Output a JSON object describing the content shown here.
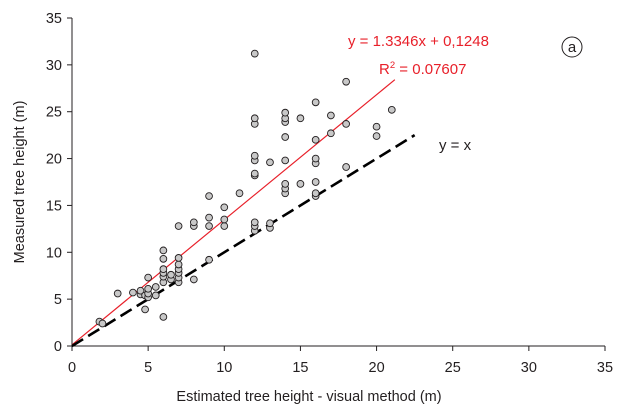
{
  "chart_data": {
    "type": "scatter",
    "xlabel": "Estimated tree height - visual method (m)",
    "ylabel": "Measured tree height (m)",
    "xlim": [
      0,
      35
    ],
    "ylim": [
      0,
      35
    ],
    "xticks": [
      0,
      5,
      10,
      15,
      20,
      25,
      30,
      35
    ],
    "yticks": [
      0,
      5,
      10,
      15,
      20,
      25,
      30,
      35
    ],
    "grid": false,
    "panel_label": "a",
    "series": [
      {
        "kind": "scatter",
        "marker": "circle",
        "fill": "#c8c8c8",
        "edge": "#231f20",
        "points": [
          [
            1.8,
            2.6
          ],
          [
            2.0,
            2.4
          ],
          [
            3.0,
            5.6
          ],
          [
            4.0,
            5.7
          ],
          [
            4.5,
            5.5
          ],
          [
            4.5,
            5.9
          ],
          [
            4.8,
            5.4
          ],
          [
            5.0,
            5.2
          ],
          [
            5.0,
            5.6
          ],
          [
            5.0,
            6.1
          ],
          [
            5.0,
            7.3
          ],
          [
            4.8,
            3.9
          ],
          [
            5.5,
            5.4
          ],
          [
            5.5,
            6.3
          ],
          [
            6.0,
            3.1
          ],
          [
            6.0,
            6.8
          ],
          [
            6.0,
            7.4
          ],
          [
            6.0,
            7.8
          ],
          [
            6.0,
            8.2
          ],
          [
            6.0,
            9.3
          ],
          [
            6.0,
            10.2
          ],
          [
            6.5,
            7.1
          ],
          [
            6.5,
            7.6
          ],
          [
            7.0,
            6.8
          ],
          [
            7.0,
            7.3
          ],
          [
            7.0,
            7.8
          ],
          [
            7.0,
            8.2
          ],
          [
            7.0,
            8.7
          ],
          [
            7.0,
            9.4
          ],
          [
            7.0,
            12.8
          ],
          [
            8.0,
            7.1
          ],
          [
            8.0,
            12.8
          ],
          [
            8.0,
            13.2
          ],
          [
            9.0,
            9.2
          ],
          [
            9.0,
            12.8
          ],
          [
            9.0,
            13.7
          ],
          [
            9.0,
            16.0
          ],
          [
            10.0,
            12.8
          ],
          [
            10.0,
            13.5
          ],
          [
            10.0,
            14.8
          ],
          [
            11.0,
            16.3
          ],
          [
            12.0,
            12.3
          ],
          [
            12.0,
            12.8
          ],
          [
            12.0,
            13.2
          ],
          [
            12.0,
            18.2
          ],
          [
            12.0,
            18.4
          ],
          [
            12.0,
            19.8
          ],
          [
            12.0,
            20.3
          ],
          [
            12.0,
            23.7
          ],
          [
            12.0,
            24.3
          ],
          [
            12.0,
            31.2
          ],
          [
            13.0,
            12.6
          ],
          [
            13.0,
            13.1
          ],
          [
            13.0,
            19.6
          ],
          [
            14.0,
            16.3
          ],
          [
            14.0,
            16.8
          ],
          [
            14.0,
            17.3
          ],
          [
            14.0,
            19.8
          ],
          [
            14.0,
            22.3
          ],
          [
            14.0,
            23.9
          ],
          [
            14.0,
            24.3
          ],
          [
            14.0,
            24.9
          ],
          [
            15.0,
            17.3
          ],
          [
            15.0,
            24.3
          ],
          [
            16.0,
            16.0
          ],
          [
            16.0,
            16.3
          ],
          [
            16.0,
            17.5
          ],
          [
            16.0,
            19.5
          ],
          [
            16.0,
            20.0
          ],
          [
            16.0,
            22.0
          ],
          [
            16.0,
            26.0
          ],
          [
            17.0,
            22.7
          ],
          [
            17.0,
            24.6
          ],
          [
            18.0,
            19.1
          ],
          [
            18.0,
            23.7
          ],
          [
            18.0,
            28.2
          ],
          [
            20.0,
            22.4
          ],
          [
            20.0,
            23.4
          ],
          [
            21.0,
            25.2
          ]
        ]
      },
      {
        "kind": "line",
        "name": "y = 1.3346x + 0,1248",
        "style": "solid",
        "color": "#e8202a",
        "slope": 1.3346,
        "intercept": 0.1248,
        "x_range": [
          0,
          21.2
        ]
      },
      {
        "kind": "line",
        "name": "y = x",
        "style": "dashed",
        "color": "#000000",
        "slope": 1,
        "intercept": 0,
        "x_range": [
          0,
          22.5
        ]
      }
    ],
    "annotations": {
      "regression_equation": "y = 1.3346x + 0,1248",
      "r_squared_prefix": "R",
      "r_squared_sup": "2",
      "r_squared_value": " = 0.07607",
      "identity_label": "y = x"
    }
  }
}
